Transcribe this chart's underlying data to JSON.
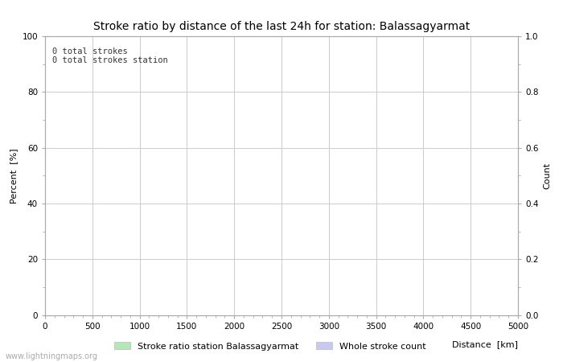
{
  "title": "Stroke ratio by distance of the last 24h for station: Balassagyarmat",
  "annotation_line1": "0 total strokes",
  "annotation_line2": "0 total strokes station",
  "xlabel": "Distance  [km]",
  "ylabel_left": "Percent  [%]",
  "ylabel_right": "Count",
  "xlim": [
    0,
    5000
  ],
  "ylim_left": [
    0,
    100
  ],
  "ylim_right": [
    0.0,
    1.0
  ],
  "xticks": [
    0,
    500,
    1000,
    1500,
    2000,
    2500,
    3000,
    3500,
    4000,
    4500,
    5000
  ],
  "yticks_left": [
    0,
    20,
    40,
    60,
    80,
    100
  ],
  "yticks_right": [
    0.0,
    0.2,
    0.4,
    0.6,
    0.8,
    1.0
  ],
  "grid_color": "#cccccc",
  "background_color": "#ffffff",
  "legend_label_1": "Stroke ratio station Balassagyarmat",
  "legend_label_2": "Whole stroke count",
  "legend_color_1": "#b5e6b5",
  "legend_color_2": "#c8c8f0",
  "watermark": "www.lightningmaps.org",
  "title_fontsize": 10,
  "axis_fontsize": 8,
  "tick_fontsize": 7.5,
  "annotation_fontsize": 7.5,
  "watermark_fontsize": 7,
  "spine_color": "#aaaaaa"
}
